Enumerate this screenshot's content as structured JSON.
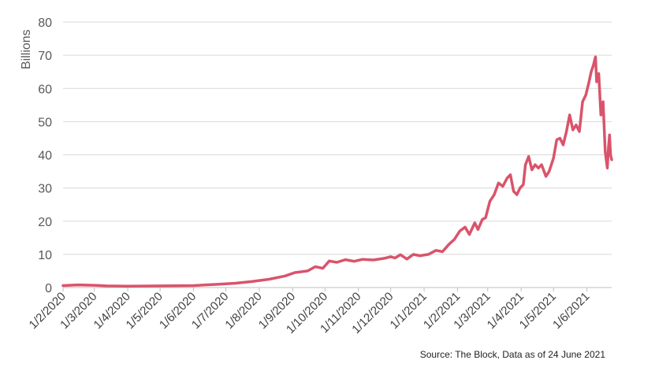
{
  "chart_data": {
    "type": "line",
    "title": "",
    "xlabel": "",
    "ylabel": "Billions",
    "ylim": [
      0,
      80
    ],
    "yticks": [
      0,
      10,
      20,
      30,
      40,
      50,
      60,
      70,
      80
    ],
    "xlim": [
      "2020-02-01",
      "2021-06-24"
    ],
    "grid": true,
    "color": "#d9546b",
    "xticks": [
      {
        "date": "2020-02-01",
        "label": "1/2/2020"
      },
      {
        "date": "2020-03-01",
        "label": "1/3/2020"
      },
      {
        "date": "2020-04-01",
        "label": "1/4/2020"
      },
      {
        "date": "2020-05-01",
        "label": "1/5/2020"
      },
      {
        "date": "2020-06-01",
        "label": "1/6/2020"
      },
      {
        "date": "2020-07-01",
        "label": "1/7/2020"
      },
      {
        "date": "2020-08-01",
        "label": "1/8/2020"
      },
      {
        "date": "2020-09-01",
        "label": "1/9/2020"
      },
      {
        "date": "2020-10-01",
        "label": "1/10/2020"
      },
      {
        "date": "2020-11-01",
        "label": "1/11/2020"
      },
      {
        "date": "2020-12-01",
        "label": "1/12/2020"
      },
      {
        "date": "2021-01-01",
        "label": "1/1/2021"
      },
      {
        "date": "2021-02-01",
        "label": "1/2/2021"
      },
      {
        "date": "2021-03-01",
        "label": "1/3/2021"
      },
      {
        "date": "2021-04-01",
        "label": "1/4/2021"
      },
      {
        "date": "2021-05-01",
        "label": "1/5/2021"
      },
      {
        "date": "2021-06-01",
        "label": "1/6/2021"
      }
    ],
    "series": [
      {
        "points": [
          [
            "2020-02-01",
            0.6
          ],
          [
            "2020-02-15",
            0.8
          ],
          [
            "2020-03-01",
            0.7
          ],
          [
            "2020-03-12",
            0.5
          ],
          [
            "2020-04-01",
            0.4
          ],
          [
            "2020-05-01",
            0.5
          ],
          [
            "2020-06-01",
            0.6
          ],
          [
            "2020-06-25",
            1.0
          ],
          [
            "2020-07-10",
            1.3
          ],
          [
            "2020-07-25",
            1.8
          ],
          [
            "2020-08-10",
            2.5
          ],
          [
            "2020-08-25",
            3.5
          ],
          [
            "2020-09-03",
            4.5
          ],
          [
            "2020-09-15",
            5.0
          ],
          [
            "2020-09-22",
            6.3
          ],
          [
            "2020-09-29",
            5.8
          ],
          [
            "2020-10-05",
            8.0
          ],
          [
            "2020-10-12",
            7.6
          ],
          [
            "2020-10-20",
            8.4
          ],
          [
            "2020-10-28",
            7.9
          ],
          [
            "2020-11-05",
            8.5
          ],
          [
            "2020-11-15",
            8.3
          ],
          [
            "2020-11-25",
            8.8
          ],
          [
            "2020-12-01",
            9.3
          ],
          [
            "2020-12-05",
            8.9
          ],
          [
            "2020-12-10",
            9.9
          ],
          [
            "2020-12-16",
            8.6
          ],
          [
            "2020-12-22",
            10.0
          ],
          [
            "2020-12-28",
            9.6
          ],
          [
            "2021-01-05",
            10.0
          ],
          [
            "2021-01-12",
            11.2
          ],
          [
            "2021-01-18",
            10.8
          ],
          [
            "2021-01-24",
            13.0
          ],
          [
            "2021-01-29",
            14.5
          ],
          [
            "2021-02-03",
            17.0
          ],
          [
            "2021-02-08",
            18.2
          ],
          [
            "2021-02-12",
            16.0
          ],
          [
            "2021-02-17",
            19.5
          ],
          [
            "2021-02-20",
            17.5
          ],
          [
            "2021-02-24",
            20.5
          ],
          [
            "2021-02-27",
            21.0
          ],
          [
            "2021-03-03",
            26.0
          ],
          [
            "2021-03-07",
            28.0
          ],
          [
            "2021-03-11",
            31.5
          ],
          [
            "2021-03-15",
            30.5
          ],
          [
            "2021-03-19",
            33.0
          ],
          [
            "2021-03-22",
            34.0
          ],
          [
            "2021-03-25",
            29.0
          ],
          [
            "2021-03-28",
            28.0
          ],
          [
            "2021-03-31",
            30.0
          ],
          [
            "2021-04-03",
            31.0
          ],
          [
            "2021-04-05",
            37.0
          ],
          [
            "2021-04-08",
            39.5
          ],
          [
            "2021-04-11",
            35.5
          ],
          [
            "2021-04-14",
            37.0
          ],
          [
            "2021-04-17",
            36.0
          ],
          [
            "2021-04-20",
            37.0
          ],
          [
            "2021-04-24",
            33.5
          ],
          [
            "2021-04-27",
            35.0
          ],
          [
            "2021-05-01",
            39.0
          ],
          [
            "2021-05-04",
            44.5
          ],
          [
            "2021-05-07",
            45.0
          ],
          [
            "2021-05-10",
            43.0
          ],
          [
            "2021-05-13",
            47.0
          ],
          [
            "2021-05-16",
            52.0
          ],
          [
            "2021-05-19",
            47.5
          ],
          [
            "2021-05-22",
            49.0
          ],
          [
            "2021-05-25",
            47.0
          ],
          [
            "2021-05-28",
            56.0
          ],
          [
            "2021-05-31",
            58.0
          ],
          [
            "2021-06-03",
            62.0
          ],
          [
            "2021-06-05",
            65.0
          ],
          [
            "2021-06-07",
            67.0
          ],
          [
            "2021-06-09",
            69.5
          ],
          [
            "2021-06-10",
            62.0
          ],
          [
            "2021-06-12",
            64.5
          ],
          [
            "2021-06-14",
            52.0
          ],
          [
            "2021-06-16",
            56.0
          ],
          [
            "2021-06-18",
            41.0
          ],
          [
            "2021-06-20",
            36.0
          ],
          [
            "2021-06-21",
            42.0
          ],
          [
            "2021-06-22",
            46.0
          ],
          [
            "2021-06-23",
            40.0
          ],
          [
            "2021-06-24",
            38.5
          ]
        ]
      }
    ]
  },
  "source": "Source: The Block, Data as of 24 June 2021"
}
